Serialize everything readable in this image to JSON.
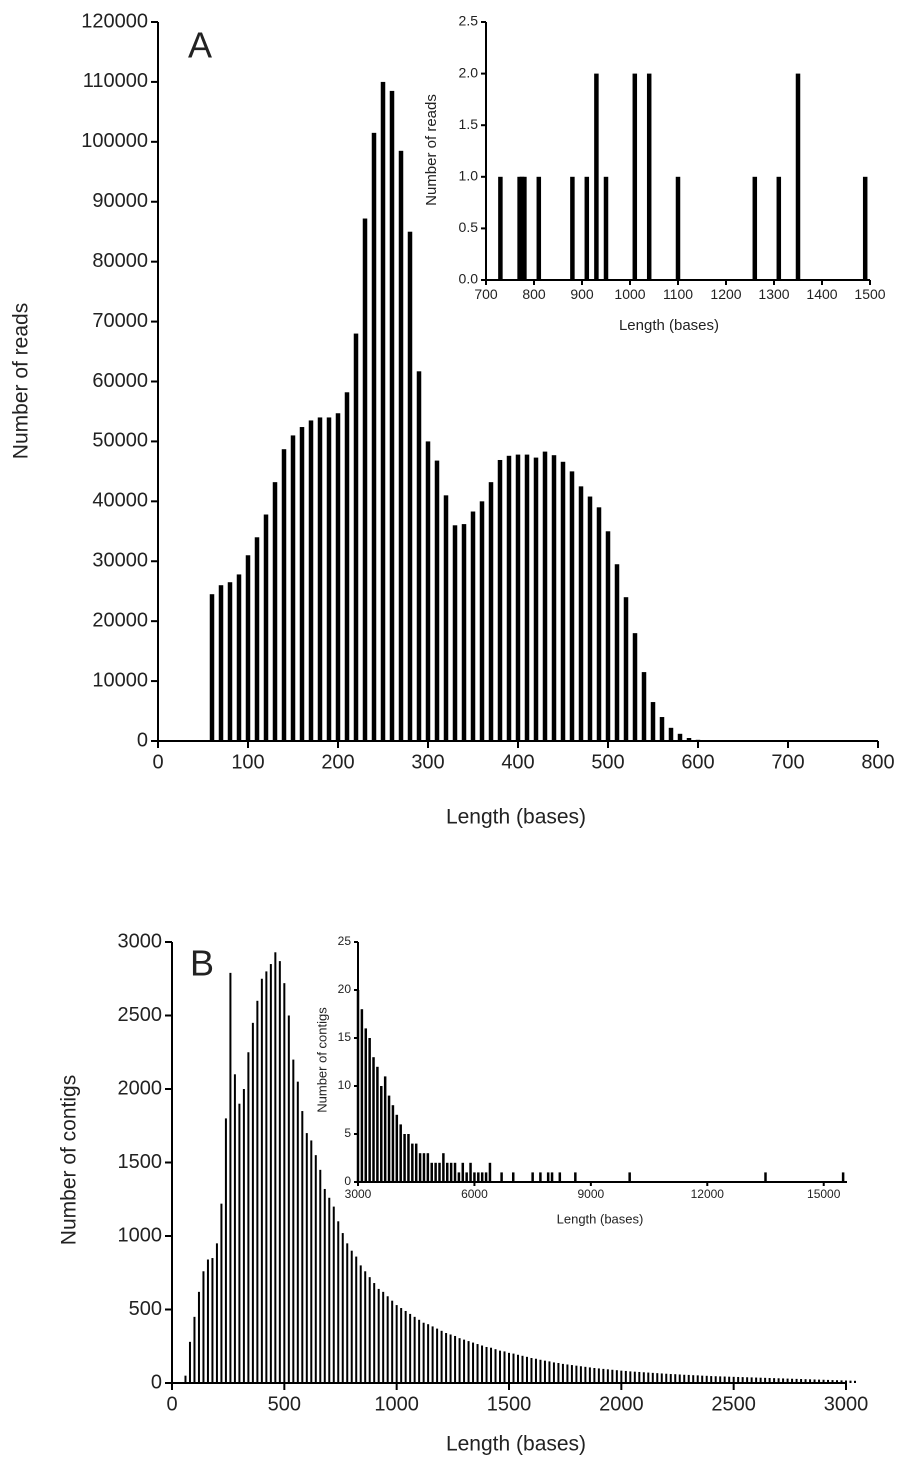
{
  "chart_data": [
    {
      "type": "bar",
      "panel_label": "A",
      "x_label": "Length (bases)",
      "y_label": "Number of reads",
      "color": "#000000",
      "xlim": [
        0,
        800
      ],
      "xticks": [
        0,
        100,
        200,
        300,
        400,
        500,
        600,
        700,
        800
      ],
      "ylim": [
        0,
        120000
      ],
      "yticks": [
        0,
        10000,
        20000,
        30000,
        40000,
        50000,
        60000,
        70000,
        80000,
        90000,
        100000,
        110000,
        120000
      ],
      "x": [
        60,
        70,
        80,
        90,
        100,
        110,
        120,
        130,
        140,
        150,
        160,
        170,
        180,
        190,
        200,
        210,
        220,
        230,
        240,
        250,
        260,
        270,
        280,
        290,
        300,
        310,
        320,
        330,
        340,
        350,
        360,
        370,
        380,
        390,
        400,
        410,
        420,
        430,
        440,
        450,
        460,
        470,
        480,
        490,
        500,
        510,
        520,
        530,
        540,
        550,
        560,
        570,
        580,
        590,
        600
      ],
      "values": [
        24500,
        26000,
        26500,
        27800,
        31000,
        34000,
        37800,
        43200,
        48700,
        51000,
        52400,
        53500,
        54000,
        54000,
        54700,
        58200,
        68000,
        87200,
        101500,
        110000,
        108500,
        98500,
        85000,
        61700,
        50000,
        46800,
        41000,
        36000,
        36200,
        38300,
        40000,
        43200,
        46900,
        47600,
        47800,
        47800,
        47300,
        48300,
        47700,
        46600,
        45000,
        42500,
        40800,
        39000,
        35000,
        29500,
        24000,
        18000,
        11500,
        6500,
        4000,
        2200,
        1200,
        500,
        200
      ]
    },
    {
      "type": "bar",
      "x_label": "Length (bases)",
      "y_label": "Number of reads",
      "color": "#000000",
      "xlim": [
        700,
        1500
      ],
      "xticks": [
        700,
        800,
        900,
        1000,
        1100,
        1200,
        1300,
        1400,
        1500
      ],
      "ylim": [
        0,
        2.5
      ],
      "yticks": [
        {
          "value": 0,
          "label": "0.0"
        },
        0.5,
        {
          "value": 1,
          "label": "1.0"
        },
        1.5,
        {
          "value": 2,
          "label": "2.0"
        },
        2.5
      ],
      "x": [
        730,
        770,
        775,
        780,
        810,
        880,
        910,
        930,
        950,
        1010,
        1040,
        1100,
        1260,
        1310,
        1350,
        1490
      ],
      "values": [
        1,
        1,
        1,
        1,
        1,
        1,
        1,
        2,
        1,
        2,
        2,
        1,
        1,
        1,
        2,
        1
      ]
    },
    {
      "type": "bar",
      "panel_label": "B",
      "x_label": "Length (bases)",
      "y_label": "Number of contigs",
      "color": "#000000",
      "xlim": [
        0,
        3000
      ],
      "xticks": [
        0,
        500,
        1000,
        1500,
        2000,
        2500,
        3000
      ],
      "ylim": [
        0,
        3000
      ],
      "yticks": [
        0,
        500,
        1000,
        1500,
        2000,
        2500,
        3000
      ],
      "x": [
        60,
        80,
        100,
        120,
        140,
        160,
        180,
        200,
        220,
        240,
        260,
        280,
        300,
        320,
        340,
        360,
        380,
        400,
        420,
        440,
        460,
        480,
        500,
        520,
        540,
        560,
        580,
        600,
        620,
        640,
        660,
        680,
        700,
        720,
        740,
        760,
        780,
        800,
        820,
        840,
        860,
        880,
        900,
        920,
        940,
        960,
        980,
        1000,
        1020,
        1040,
        1060,
        1080,
        1100,
        1120,
        1140,
        1160,
        1180,
        1200,
        1220,
        1240,
        1260,
        1280,
        1300,
        1320,
        1340,
        1360,
        1380,
        1400,
        1420,
        1440,
        1460,
        1480,
        1500,
        1520,
        1540,
        1560,
        1580,
        1600,
        1620,
        1640,
        1660,
        1680,
        1700,
        1720,
        1740,
        1760,
        1780,
        1800,
        1820,
        1840,
        1860,
        1880,
        1900,
        1920,
        1940,
        1960,
        1980,
        2000,
        2020,
        2040,
        2060,
        2080,
        2100,
        2120,
        2140,
        2160,
        2180,
        2200,
        2220,
        2240,
        2260,
        2280,
        2300,
        2320,
        2340,
        2360,
        2380,
        2400,
        2420,
        2440,
        2460,
        2480,
        2500,
        2520,
        2540,
        2560,
        2580,
        2600,
        2620,
        2640,
        2660,
        2680,
        2700,
        2720,
        2740,
        2760,
        2780,
        2800,
        2820,
        2840,
        2860,
        2880,
        2900,
        2920,
        2940,
        2960,
        2980,
        3000,
        3020,
        3040
      ],
      "values": [
        50,
        280,
        450,
        620,
        760,
        840,
        850,
        950,
        1220,
        1800,
        2790,
        2100,
        1900,
        2000,
        2250,
        2450,
        2600,
        2750,
        2800,
        2850,
        2930,
        2870,
        2720,
        2500,
        2200,
        2050,
        1850,
        1700,
        1650,
        1550,
        1450,
        1320,
        1260,
        1200,
        1100,
        1020,
        950,
        900,
        860,
        800,
        760,
        720,
        680,
        640,
        620,
        590,
        560,
        530,
        510,
        490,
        470,
        450,
        430,
        410,
        400,
        385,
        370,
        355,
        340,
        330,
        320,
        305,
        295,
        285,
        275,
        265,
        255,
        245,
        240,
        230,
        220,
        215,
        205,
        200,
        192,
        185,
        178,
        170,
        165,
        158,
        152,
        147,
        140,
        136,
        130,
        126,
        122,
        118,
        114,
        110,
        106,
        102,
        99,
        96,
        93,
        90,
        87,
        84,
        82,
        79,
        77,
        75,
        73,
        71,
        69,
        67,
        65,
        63,
        61,
        60,
        58,
        56,
        55,
        53,
        52,
        50,
        49,
        47,
        46,
        45,
        44,
        43,
        42,
        41,
        40,
        39,
        38,
        37,
        36,
        35,
        34,
        33,
        32,
        31,
        30,
        29,
        28,
        27,
        26,
        25,
        24,
        23,
        22,
        21,
        20,
        19,
        18,
        17,
        16,
        15
      ]
    },
    {
      "type": "bar",
      "x_label": "Length (bases)",
      "y_label": "Number of contigs",
      "color": "#000000",
      "xlim": [
        3000,
        15600
      ],
      "xticks": [
        3000,
        6000,
        9000,
        12000,
        15000
      ],
      "ylim": [
        0,
        25
      ],
      "yticks": [
        0,
        5,
        10,
        15,
        20,
        25
      ],
      "x": [
        3000,
        3100,
        3200,
        3300,
        3400,
        3500,
        3600,
        3700,
        3800,
        3900,
        4000,
        4100,
        4200,
        4300,
        4400,
        4500,
        4600,
        4700,
        4800,
        4900,
        5000,
        5100,
        5200,
        5300,
        5400,
        5500,
        5600,
        5700,
        5800,
        5900,
        6000,
        6100,
        6200,
        6300,
        6400,
        6700,
        7000,
        7500,
        7700,
        7900,
        8000,
        8200,
        8600,
        10000,
        13500,
        15500
      ],
      "values": [
        20,
        18,
        16,
        15,
        13,
        12,
        10,
        11,
        9,
        8,
        7,
        6,
        5,
        5,
        4,
        4,
        3,
        3,
        3,
        2,
        2,
        2,
        3,
        2,
        2,
        2,
        1,
        2,
        1,
        2,
        1,
        1,
        1,
        1,
        2,
        1,
        1,
        1,
        1,
        1,
        1,
        1,
        1,
        1,
        1,
        1
      ]
    }
  ]
}
